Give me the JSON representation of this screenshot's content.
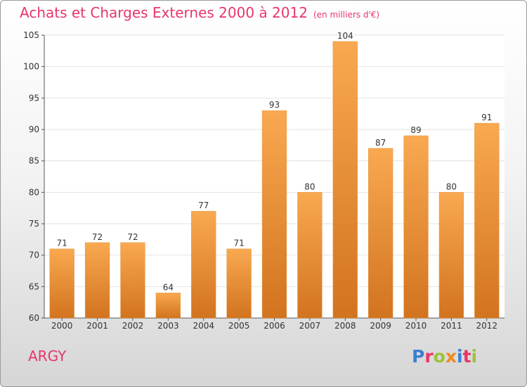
{
  "header": {
    "title": "Achats et Charges Externes 2000 à 2012",
    "unit": "(en milliers d'€)"
  },
  "footer": {
    "commune": "ARGY",
    "logo_letters": [
      {
        "char": "P",
        "color": "#3b7fd1"
      },
      {
        "char": "r",
        "color": "#e8366b"
      },
      {
        "char": "o",
        "color": "#9bc23a"
      },
      {
        "char": "x",
        "color": "#f18a1c"
      },
      {
        "char": "i",
        "color": "#3b7fd1"
      },
      {
        "char": "t",
        "color": "#e8366b"
      },
      {
        "char": "i",
        "color": "#9bc23a"
      }
    ]
  },
  "colors": {
    "title": "#e8366b",
    "bar_light": "#f9a951",
    "bar_dark": "#d2731f",
    "grid": "#e2e2e2"
  },
  "chart_data": {
    "type": "bar",
    "title": "Achats et Charges Externes 2000 à 2012",
    "subtitle": "(en milliers d'€)",
    "xlabel": "",
    "ylabel": "",
    "categories": [
      "2000",
      "2001",
      "2002",
      "2003",
      "2004",
      "2005",
      "2006",
      "2007",
      "2008",
      "2009",
      "2010",
      "2011",
      "2012"
    ],
    "values": [
      71,
      72,
      72,
      64,
      77,
      71,
      93,
      80,
      104,
      87,
      89,
      80,
      91
    ],
    "ylim": [
      60,
      105
    ],
    "yticks": [
      60,
      65,
      70,
      75,
      80,
      85,
      90,
      95,
      100,
      105
    ],
    "grid": true,
    "data_labels": true
  }
}
